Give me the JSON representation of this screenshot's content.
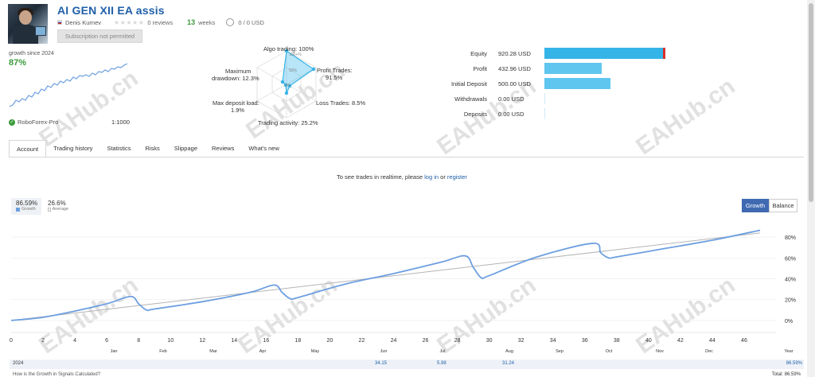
{
  "header": {
    "title": "AI GEN XII EA assis",
    "author": "Denis Kurnev",
    "reviews": "0 reviews",
    "weeks_num": "13",
    "weeks_label": "weeks",
    "subscribers": "0 / 0 USD",
    "subscribe_button": "Subscription not permitted"
  },
  "growth_mini": {
    "label": "growth since 2024",
    "value": "87%",
    "broker": "RoboForex-Pro",
    "leverage": "1:1000"
  },
  "radar": {
    "algo": "Algo trading: 100%",
    "profit_trades": "Profit Trades:",
    "profit_trades_val": "91.5%",
    "loss_trades": "Loss Trades: 8.5%",
    "trading_activity": "Trading activity: 25.2%",
    "max_deposit_load": "Max deposit load:",
    "max_deposit_load_val": "1.9%",
    "max_drawdown": "Maximum",
    "max_drawdown_val": "drawdown: 12.3%",
    "ring_100": "100+%",
    "ring_50": "50%",
    "ring_0": "0%",
    "values": {
      "algo": 100,
      "profit": 91.5,
      "loss": 8.5,
      "activity": 25.2,
      "load": 1.9,
      "drawdown": 12.3
    }
  },
  "finance": [
    {
      "label": "Equity",
      "value": "920.28 USD",
      "amount": 920.28
    },
    {
      "label": "Profit",
      "value": "432.96 USD",
      "amount": 432.96
    },
    {
      "label": "Initial Deposit",
      "value": "500.00 USD",
      "amount": 500.0
    },
    {
      "label": "Withdrawals",
      "value": "0.00 USD",
      "amount": 0
    },
    {
      "label": "Deposits",
      "value": "0.00 USD",
      "amount": 0
    }
  ],
  "tabs": [
    "Account",
    "Trading history",
    "Statistics",
    "Risks",
    "Slippage",
    "Reviews",
    "What's new"
  ],
  "realtime": {
    "prefix": "To see trades in realtime, please",
    "login": "log in",
    "or": "or",
    "register": "register"
  },
  "stats": {
    "growth_value": "86.59%",
    "growth_label": "Growth",
    "avg_value": "26.6%",
    "avg_label": "Average"
  },
  "toggles": {
    "growth": "Growth",
    "balance": "Balance"
  },
  "colors": {
    "accent": "#1f5fa8",
    "green": "#3c9b3c",
    "bar": "#35b4e8",
    "line": "#6d9fe0",
    "trend": "#b5b5b5"
  },
  "chart_data": {
    "type": "line",
    "x_ticks": [
      "0",
      "2",
      "4",
      "6",
      "8",
      "10",
      "12",
      "14",
      "16",
      "18",
      "20",
      "22",
      "24",
      "26",
      "28",
      "30",
      "32",
      "34",
      "36",
      "38",
      "40",
      "42",
      "44",
      "46"
    ],
    "month_labels": [
      "Jan",
      "Feb",
      "Mar",
      "Apr",
      "May",
      "Jun",
      "Jul",
      "Aug",
      "Sep",
      "Oct",
      "Nov",
      "Dec",
      "Year"
    ],
    "y_ticks": [
      "0%",
      "20%",
      "40%",
      "60%",
      "80%"
    ],
    "ylim": [
      -10,
      90
    ],
    "xlim": [
      0,
      48
    ],
    "series": [
      {
        "x": [
          0,
          2,
          4,
          6,
          7.5,
          8,
          8.5,
          9,
          12,
          15,
          16.5,
          17,
          17.5,
          18,
          21,
          24,
          27,
          28.5,
          29,
          29.5,
          30,
          33,
          36.5,
          37,
          37.5,
          38,
          41,
          44,
          47
        ],
        "y": [
          0,
          3,
          9,
          16,
          23,
          16,
          10,
          11,
          18,
          27,
          34,
          27,
          21,
          22,
          35,
          45,
          56,
          62,
          51,
          41,
          43,
          61,
          74,
          65,
          60,
          61,
          69,
          77,
          86.59
        ]
      },
      {
        "x": [
          0,
          47
        ],
        "y": [
          0,
          84
        ]
      }
    ],
    "bottom_row": {
      "year": "2024",
      "jun": "34.15",
      "jul": "5.98",
      "aug": "31.24",
      "total": "86.59%"
    }
  },
  "footer": {
    "help": "How is the Growth in Signals Calculated?",
    "total": "Total: 86.59%"
  },
  "watermark": "EAHub.cn"
}
